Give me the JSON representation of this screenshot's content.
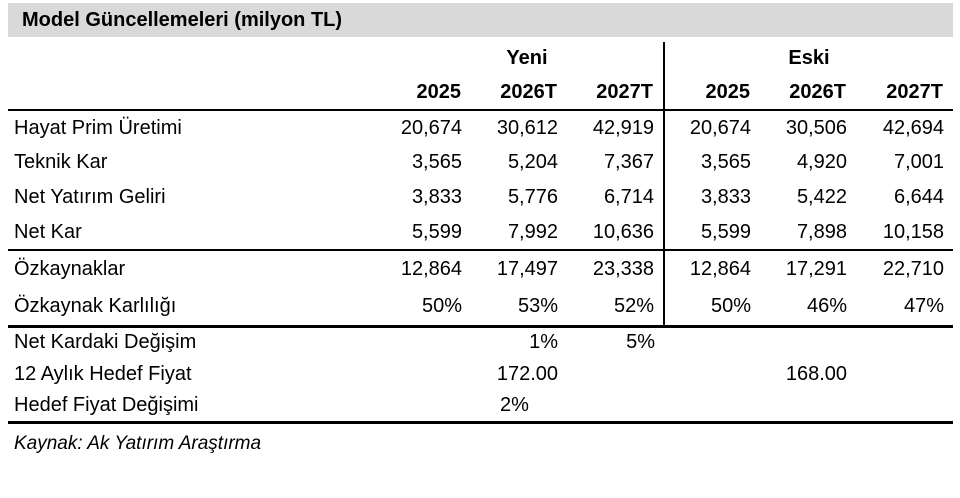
{
  "title": "Model Güncellemeleri (milyon TL)",
  "colors": {
    "title_bar_bg": "#d9d9d9",
    "border": "#000000",
    "text": "#000000"
  },
  "table": {
    "group_headers": [
      {
        "label": "Yeni"
      },
      {
        "label": "Eski"
      }
    ],
    "column_headers": [
      "2025",
      "2026T",
      "2027T",
      "2025",
      "2026T",
      "2027T"
    ],
    "sections": [
      {
        "name": "income",
        "divider": true,
        "rows": [
          {
            "label": "Hayat Prim Üretimi",
            "values": [
              "20,674",
              "30,612",
              "42,919",
              "20,674",
              "30,506",
              "42,694"
            ]
          },
          {
            "label": "Teknik Kar",
            "values": [
              "3,565",
              "5,204",
              "7,367",
              "3,565",
              "4,920",
              "7,001"
            ]
          },
          {
            "label": "Net Yatırım Geliri",
            "values": [
              "3,833",
              "5,776",
              "6,714",
              "3,833",
              "5,422",
              "6,644"
            ]
          },
          {
            "label": "Net Kar",
            "values": [
              "5,599",
              "7,992",
              "10,636",
              "5,599",
              "7,898",
              "10,158"
            ]
          }
        ]
      },
      {
        "name": "equity",
        "divider": true,
        "rows": [
          {
            "label": "Özkaynaklar",
            "values": [
              "12,864",
              "17,497",
              "23,338",
              "12,864",
              "17,291",
              "22,710"
            ]
          },
          {
            "label": "Özkaynak Karlılığı",
            "values": [
              "50%",
              "53%",
              "52%",
              "50%",
              "46%",
              "47%"
            ]
          }
        ]
      },
      {
        "name": "summary",
        "divider": false,
        "rows": [
          {
            "label": "Net Kardaki Değişim",
            "values": [
              "",
              "1%",
              "5%",
              "",
              "",
              ""
            ]
          },
          {
            "label": "12 Aylık Hedef Fiyat",
            "values": [
              "",
              "172.00",
              "",
              "",
              "168.00",
              ""
            ]
          },
          {
            "label": "Hedef Fiyat Değişimi",
            "values": [
              "",
              "2%",
              "",
              "",
              "",
              ""
            ],
            "align": "center"
          }
        ]
      }
    ]
  },
  "source": "Kaynak: Ak Yatırım Araştırma",
  "chart_data": {
    "type": "table",
    "title": "Model Güncellemeleri (milyon TL)",
    "column_groups": [
      "Yeni",
      "Eski"
    ],
    "columns": [
      "Yeni 2025",
      "Yeni 2026T",
      "Yeni 2027T",
      "Eski 2025",
      "Eski 2026T",
      "Eski 2027T"
    ],
    "rows": [
      {
        "label": "Hayat Prim Üretimi",
        "values": [
          20674,
          30612,
          42919,
          20674,
          30506,
          42694
        ]
      },
      {
        "label": "Teknik Kar",
        "values": [
          3565,
          5204,
          7367,
          3565,
          4920,
          7001
        ]
      },
      {
        "label": "Net Yatırım Geliri",
        "values": [
          3833,
          5776,
          6714,
          3833,
          5422,
          6644
        ]
      },
      {
        "label": "Net Kar",
        "values": [
          5599,
          7992,
          10636,
          5599,
          7898,
          10158
        ]
      },
      {
        "label": "Özkaynaklar",
        "values": [
          12864,
          17497,
          23338,
          12864,
          17291,
          22710
        ]
      },
      {
        "label": "Özkaynak Karlılığı",
        "values": [
          "50%",
          "53%",
          "52%",
          "50%",
          "46%",
          "47%"
        ]
      },
      {
        "label": "Net Kardaki Değişim",
        "values": [
          null,
          "1%",
          "5%",
          null,
          null,
          null
        ]
      },
      {
        "label": "12 Aylık Hedef Fiyat",
        "values": [
          null,
          172.0,
          null,
          null,
          168.0,
          null
        ]
      },
      {
        "label": "Hedef Fiyat Değişimi",
        "values": [
          null,
          "2%",
          null,
          null,
          null,
          null
        ]
      }
    ],
    "source": "Kaynak: Ak Yatırım Araştırma"
  }
}
